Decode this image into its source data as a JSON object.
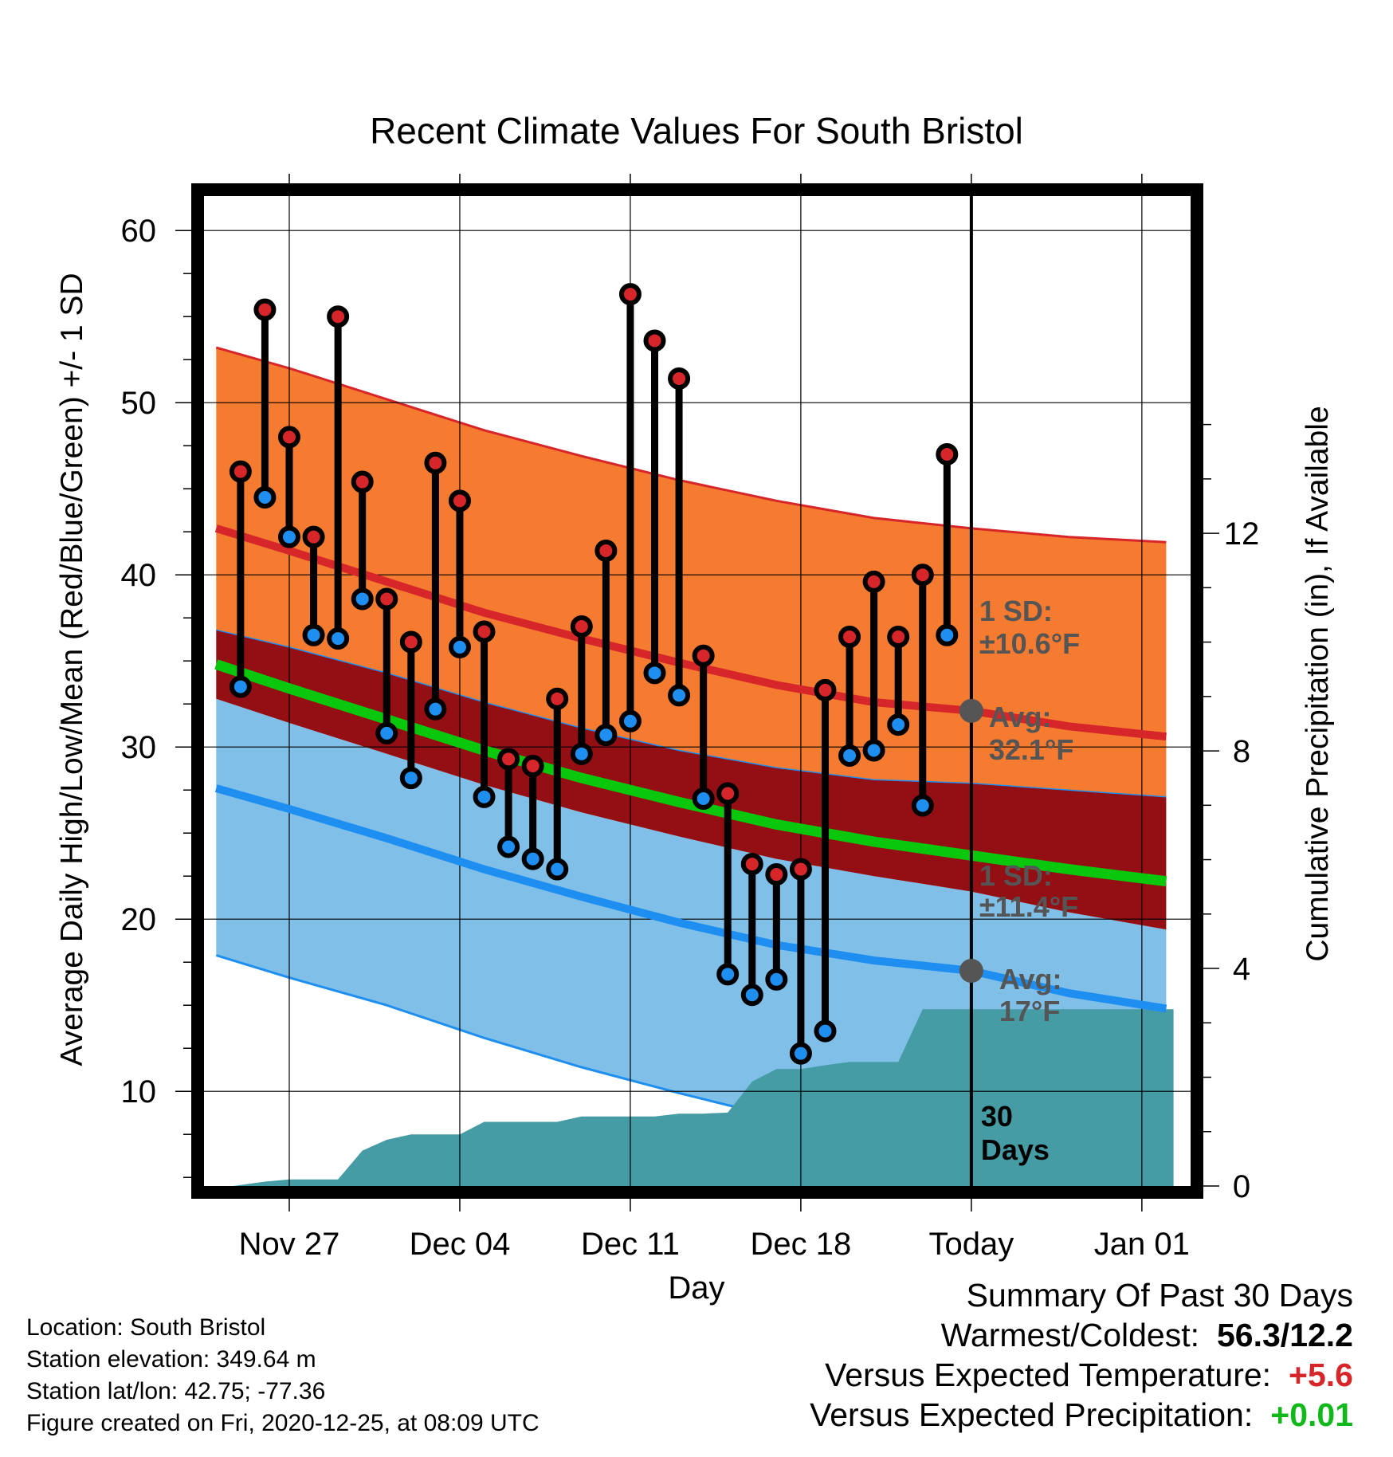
{
  "chart_data": {
    "type": "line",
    "title": "Recent Climate Values For South Bristol",
    "xlabel": "Day",
    "ylabel": "Average Daily High/Low/Mean (Red/Blue/Green) +/- 1 SD",
    "y2label": "Cumulative Precipitation (in), If Available",
    "ylim": [
      4.5,
      62
    ],
    "y2lim": [
      0,
      18.2
    ],
    "xlim": [
      -3.5,
      37
    ],
    "x_tick_labels": [
      {
        "x": 0,
        "label": "Nov 27"
      },
      {
        "x": 7,
        "label": "Dec 04"
      },
      {
        "x": 14,
        "label": "Dec 11"
      },
      {
        "x": 21,
        "label": "Dec 18"
      },
      {
        "x": 28,
        "label": "Today"
      },
      {
        "x": 35,
        "label": "Jan 01"
      }
    ],
    "y_ticks": [
      10,
      20,
      30,
      40,
      50,
      60
    ],
    "y2_ticks": [
      0,
      4,
      8,
      12
    ],
    "grid": true,
    "today_x": 28,
    "normals": {
      "x": [
        -3,
        0,
        4,
        8,
        12,
        16,
        20,
        24,
        28,
        32,
        36
      ],
      "high_avg": [
        42.7,
        41.4,
        39.6,
        37.8,
        36.3,
        34.9,
        33.6,
        32.6,
        32.1,
        31.2,
        30.6
      ],
      "high_upper": [
        53.2,
        52.0,
        50.2,
        48.4,
        46.9,
        45.5,
        44.3,
        43.3,
        42.7,
        42.2,
        41.9
      ],
      "high_lower": [
        36.8,
        35.8,
        34.3,
        32.6,
        31.1,
        29.8,
        28.8,
        28.1,
        27.9,
        27.5,
        27.1
      ],
      "mean_avg": [
        34.8,
        33.4,
        31.6,
        29.8,
        28.2,
        26.8,
        25.5,
        24.5,
        23.7,
        22.9,
        22.2
      ],
      "low_avg": [
        27.6,
        26.4,
        24.7,
        22.9,
        21.3,
        19.8,
        18.5,
        17.6,
        17.0,
        15.7,
        14.8
      ],
      "low_upper": [
        32.8,
        31.4,
        29.6,
        27.8,
        26.2,
        24.8,
        23.5,
        22.5,
        21.6,
        20.4,
        19.4
      ],
      "low_lower": [
        17.9,
        16.6,
        15.0,
        13.1,
        11.4,
        9.9,
        8.5,
        7.2,
        6.3,
        5.3,
        4.5
      ]
    },
    "series": [
      {
        "name": "High",
        "x": [
          -2,
          -1,
          0,
          1,
          2,
          3,
          4,
          5,
          6,
          7,
          8,
          9,
          10,
          11,
          12,
          13,
          14,
          15,
          16,
          17,
          18,
          19,
          20,
          21,
          22,
          23,
          24,
          25,
          26,
          27
        ],
        "values": [
          46.0,
          55.4,
          48.0,
          42.2,
          55.0,
          45.4,
          38.6,
          36.1,
          46.5,
          44.3,
          36.7,
          29.3,
          28.9,
          32.8,
          37.0,
          41.4,
          56.3,
          53.6,
          51.4,
          35.3,
          27.3,
          23.2,
          22.6,
          22.9,
          33.3,
          36.4,
          39.6,
          36.4,
          40.0,
          47.0
        ]
      },
      {
        "name": "Low",
        "x": [
          -2,
          -1,
          0,
          1,
          2,
          3,
          4,
          5,
          6,
          7,
          8,
          9,
          10,
          11,
          12,
          13,
          14,
          15,
          16,
          17,
          18,
          19,
          20,
          21,
          22,
          23,
          24,
          25,
          26,
          27
        ],
        "values": [
          33.5,
          44.5,
          42.2,
          36.5,
          36.3,
          38.6,
          30.8,
          28.2,
          32.2,
          35.8,
          27.1,
          24.2,
          23.5,
          22.9,
          29.6,
          30.7,
          31.5,
          34.3,
          33.0,
          27.0,
          16.8,
          15.6,
          16.5,
          12.2,
          13.5,
          29.5,
          29.8,
          31.3,
          26.6,
          36.5
        ]
      },
      {
        "name": "Cumulative Precipitation",
        "x": [
          -2.3,
          -1,
          0,
          1,
          2,
          3,
          4,
          5,
          6,
          7,
          8,
          9,
          10,
          11,
          12,
          13,
          14,
          15,
          16,
          17,
          18,
          19,
          20,
          21,
          22,
          23,
          24,
          25,
          26,
          27,
          28,
          36.3
        ],
        "values": [
          0,
          0.08,
          0.12,
          0.12,
          0.12,
          0.65,
          0.85,
          0.95,
          0.95,
          0.95,
          1.18,
          1.18,
          1.18,
          1.18,
          1.28,
          1.28,
          1.28,
          1.28,
          1.33,
          1.33,
          1.35,
          1.92,
          2.15,
          2.15,
          2.22,
          2.28,
          2.28,
          2.28,
          3.25,
          3.25,
          3.25,
          3.25
        ]
      }
    ],
    "annotations": [
      {
        "line1": "1 SD:",
        "line2": "±10.6°F"
      },
      {
        "line1": "Avg:",
        "line2": "32.1°F"
      },
      {
        "line1": "1 SD:",
        "line2": "±11.4°F"
      },
      {
        "line1": "Avg:",
        "line2": "17°F"
      },
      {
        "line1": "30",
        "line2": "Days"
      }
    ],
    "colors": {
      "high_band": "#f47b2f",
      "high_line": "#d7262a",
      "overlap_band": "#930f14",
      "mean_line": "#08c70d",
      "low_band": "#7fbfe8",
      "low_line": "#1e8ff0",
      "precip": "#469ca4",
      "high_dot": "#d7262a",
      "low_dot": "#1e8ff0",
      "annotation": "#555555"
    }
  },
  "info": {
    "location": "Location: South Bristol",
    "elevation": "Station elevation: 349.64 m",
    "latlon": "Station lat/lon: 42.75; -77.36",
    "created": "Figure created on Fri, 2020-12-25, at 08:09 UTC"
  },
  "summary": {
    "title": "Summary Of Past 30 Days",
    "warm_cold_label": "Warmest/Coldest:",
    "warm_cold_value": "56.3/12.2",
    "temp_label": "Versus Expected Temperature:",
    "temp_value": "+5.6",
    "temp_color": "#d7262a",
    "precip_label": "Versus Expected Precipitation:",
    "precip_value": "+0.01",
    "precip_color": "#10b81a"
  }
}
